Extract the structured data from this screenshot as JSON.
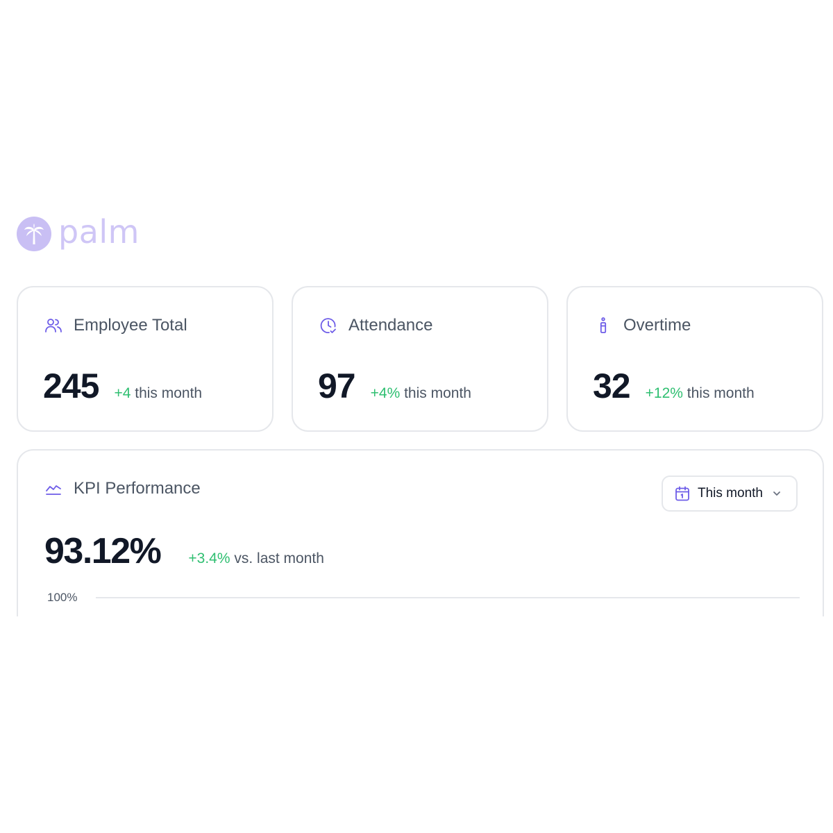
{
  "brand": {
    "name": "palm",
    "logo_color": "#c9bff4",
    "logo_icon": "palm-tree-icon"
  },
  "colors": {
    "accent": "#6d5ce8",
    "positive": "#2fbf71",
    "text_primary": "#111827",
    "text_secondary": "#4b5563",
    "border": "#e5e7eb"
  },
  "stats": [
    {
      "icon": "users-icon",
      "title": "Employee Total",
      "value": "245",
      "change": "+4",
      "change_suffix": "this month"
    },
    {
      "icon": "clock-check-icon",
      "title": "Attendance",
      "value": "97",
      "change": "+4%",
      "change_suffix": "this month"
    },
    {
      "icon": "candle-icon",
      "title": "Overtime",
      "value": "32",
      "change": "+12%",
      "change_suffix": "this month"
    }
  ],
  "kpi": {
    "icon": "trend-line-icon",
    "title": "KPI Performance",
    "value": "93.12%",
    "change": "+3.4%",
    "change_suffix": "vs. last month",
    "period_select": {
      "icon": "calendar-icon",
      "selected": "This month"
    },
    "chart_data": {
      "type": "line",
      "title": "",
      "y_ticks": [
        "100%"
      ],
      "grid": true
    }
  }
}
